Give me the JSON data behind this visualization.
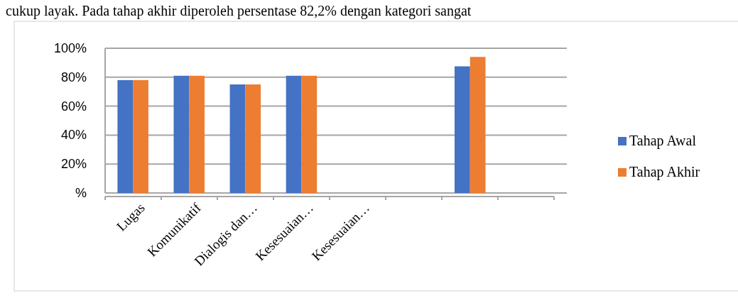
{
  "chart_data": {
    "type": "bar",
    "annotations": [
      "cukup layak. Pada tahap akhir diperoleh persentase 82,2% dengan kategori sangat"
    ],
    "categories": [
      "Lugas",
      "Komunikatif",
      "Dialogis dan…",
      "Kesesuaian…",
      "Kesesuaian…",
      null,
      null,
      null
    ],
    "series": [
      {
        "name": "Tahap Awal",
        "color": "#4472c4",
        "values": [
          78,
          81,
          75,
          81,
          null,
          null,
          87.5,
          null
        ]
      },
      {
        "name": "Tahap Akhir",
        "color": "#ed7d31",
        "values": [
          78,
          81,
          75,
          81,
          null,
          null,
          94,
          null
        ]
      }
    ],
    "ylim": [
      0,
      100
    ],
    "yticks": [
      {
        "value": 0,
        "label": "%"
      },
      {
        "value": 20,
        "label": "20%"
      },
      {
        "value": 40,
        "label": "40%"
      },
      {
        "value": 60,
        "label": "60%"
      },
      {
        "value": 80,
        "label": "80%"
      },
      {
        "value": 100,
        "label": "100%"
      }
    ],
    "grid": "y",
    "legend": "right"
  }
}
